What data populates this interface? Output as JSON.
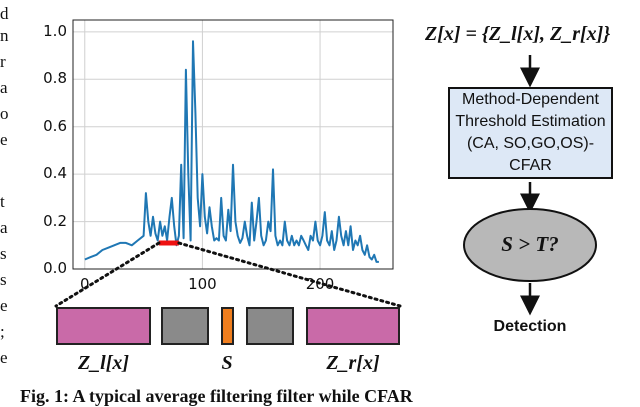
{
  "left_margin_letters": [
    "d",
    "n",
    "r",
    "a",
    "o",
    "e",
    "t",
    "a",
    "s",
    "s",
    "e",
    ";",
    "e"
  ],
  "chart_data": {
    "type": "line",
    "y_ticks": [
      "0.0",
      "0.2",
      "0.4",
      "0.6",
      "0.8",
      "1.0"
    ],
    "x_ticks": [
      "0",
      "100",
      "200"
    ],
    "ylim": [
      0,
      1.05
    ],
    "xlim": [
      -10,
      262
    ],
    "grid": true,
    "color": "#1f77b4",
    "x": [
      0,
      5,
      10,
      15,
      20,
      25,
      30,
      35,
      40,
      45,
      50,
      52,
      54,
      56,
      58,
      60,
      62,
      64,
      66,
      68,
      70,
      72,
      74,
      76,
      78,
      80,
      82,
      84,
      86,
      88,
      90,
      92,
      94,
      96,
      98,
      100,
      102,
      104,
      106,
      108,
      110,
      112,
      114,
      116,
      118,
      120,
      122,
      124,
      126,
      128,
      130,
      132,
      134,
      136,
      138,
      140,
      142,
      144,
      146,
      148,
      150,
      152,
      154,
      156,
      158,
      160,
      162,
      164,
      166,
      168,
      170,
      172,
      174,
      176,
      178,
      180,
      182,
      184,
      186,
      188,
      190,
      192,
      194,
      196,
      198,
      200,
      202,
      204,
      206,
      208,
      210,
      212,
      214,
      216,
      218,
      220,
      222,
      224,
      226,
      228,
      230,
      232,
      234,
      236,
      238,
      240,
      242,
      244,
      246,
      248,
      250
    ],
    "y": [
      0.04,
      0.05,
      0.06,
      0.08,
      0.09,
      0.1,
      0.11,
      0.11,
      0.1,
      0.12,
      0.14,
      0.32,
      0.2,
      0.14,
      0.22,
      0.15,
      0.12,
      0.2,
      0.14,
      0.18,
      0.12,
      0.22,
      0.3,
      0.18,
      0.1,
      0.14,
      0.44,
      0.13,
      0.84,
      0.4,
      0.12,
      0.96,
      0.66,
      0.3,
      0.18,
      0.4,
      0.22,
      0.15,
      0.26,
      0.18,
      0.12,
      0.13,
      0.12,
      0.3,
      0.14,
      0.12,
      0.25,
      0.16,
      0.44,
      0.2,
      0.14,
      0.11,
      0.13,
      0.2,
      0.14,
      0.1,
      0.28,
      0.12,
      0.2,
      0.3,
      0.14,
      0.1,
      0.12,
      0.2,
      0.16,
      0.42,
      0.14,
      0.1,
      0.12,
      0.1,
      0.2,
      0.12,
      0.1,
      0.14,
      0.1,
      0.12,
      0.1,
      0.14,
      0.12,
      0.1,
      0.08,
      0.14,
      0.12,
      0.2,
      0.12,
      0.1,
      0.14,
      0.24,
      0.12,
      0.1,
      0.16,
      0.08,
      0.12,
      0.22,
      0.14,
      0.1,
      0.16,
      0.1,
      0.18,
      0.08,
      0.12,
      0.1,
      0.14,
      0.08,
      0.06,
      0.1,
      0.05,
      0.04,
      0.06,
      0.03,
      0.03
    ],
    "highlight_range": [
      63,
      80
    ]
  },
  "window": {
    "left_label": "Z_l[x]",
    "cut_label": "S",
    "right_label": "Z_r[x]",
    "colors": {
      "reference": "#c96aa8",
      "guard": "#8a8a8a",
      "cut": "#f07e1e"
    }
  },
  "flow": {
    "input_label": "Z[x] = {Z_l[x], Z_r[x]}",
    "box_line1": "Method-Dependent",
    "box_line2": "Threshold Estimation",
    "box_line3": "(CA, SO,GO,OS)-CFAR",
    "decision": "S > T?",
    "output": "Detection",
    "box_color": "#dde8f6"
  },
  "caption": "Fig. 1: A typical average filtering filter while CFAR"
}
